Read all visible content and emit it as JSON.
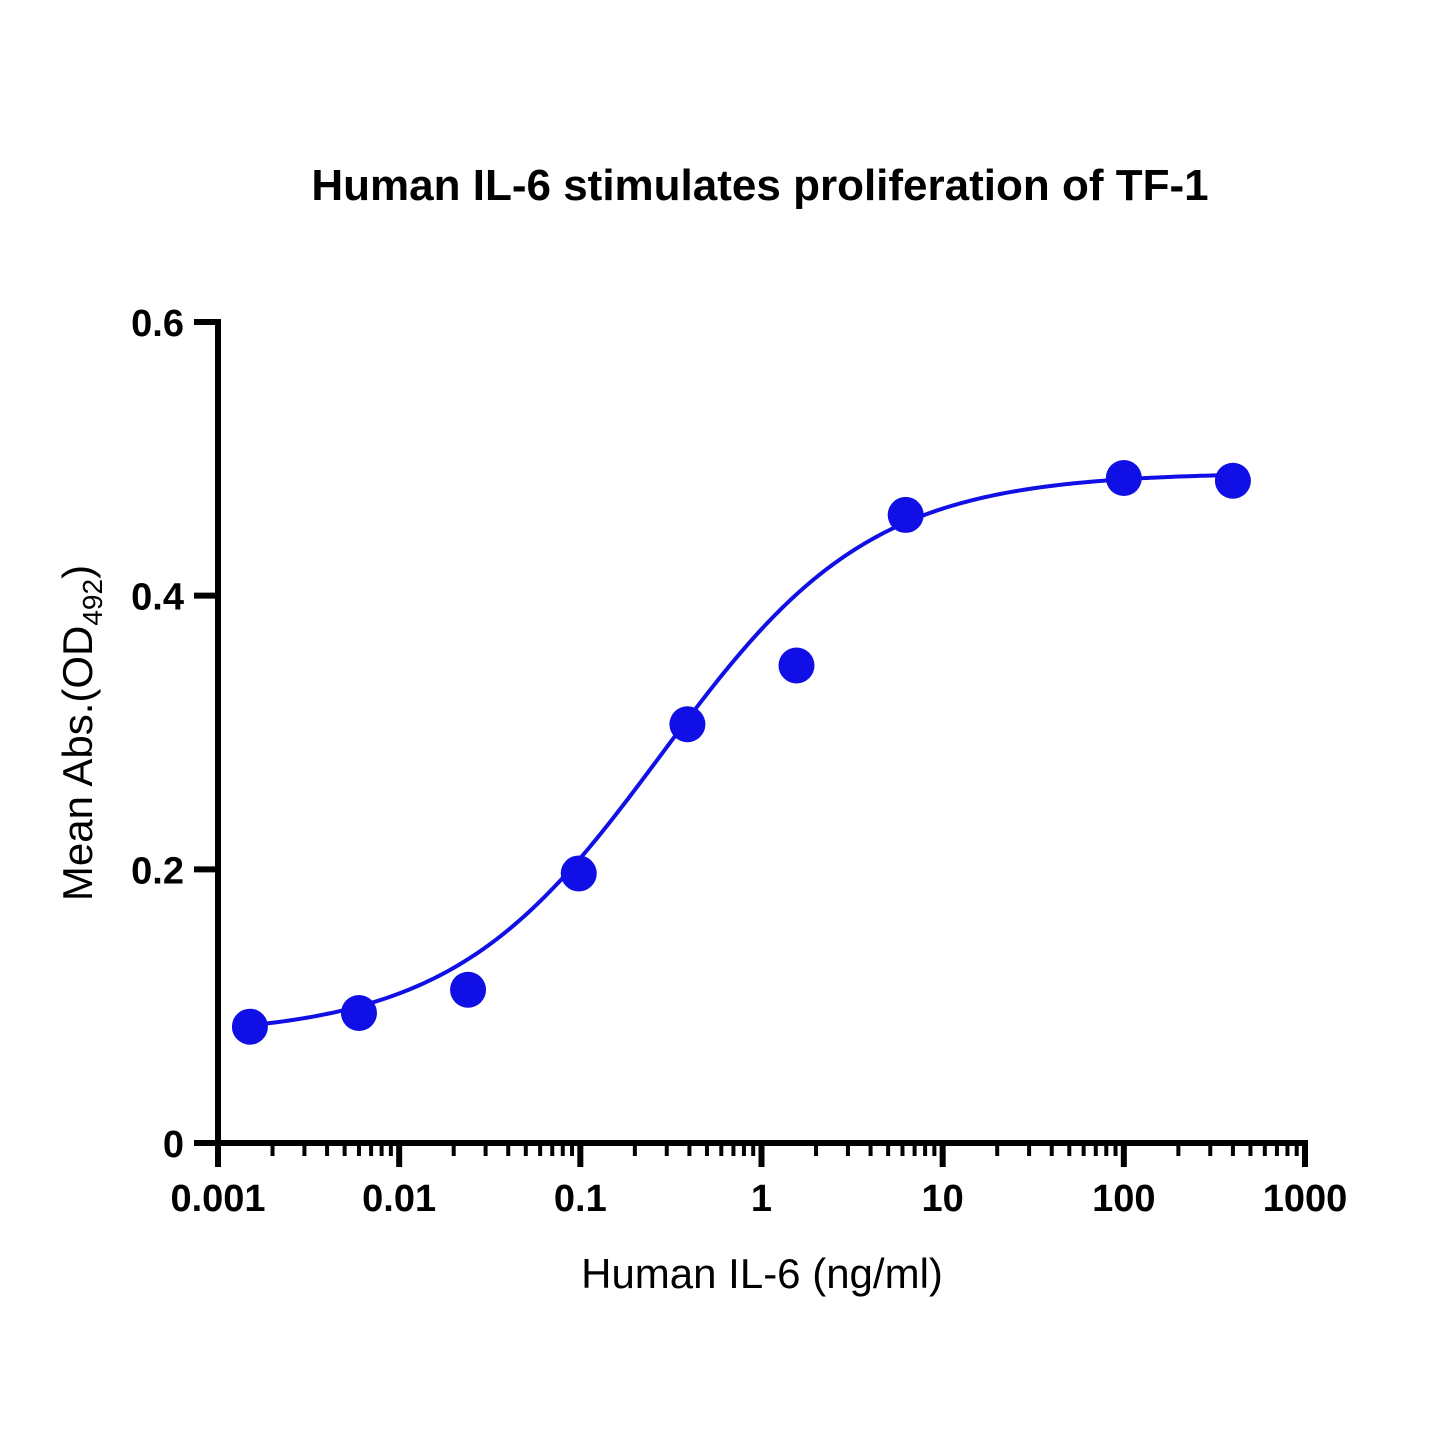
{
  "chart_data": {
    "type": "scatter",
    "title": "Human IL-6 stimulates proliferation of TF-1",
    "xlabel": "Human IL-6 (ng/ml)",
    "ylabel": {
      "main": "Mean Abs.(OD",
      "subscript": "492",
      "close": ")"
    },
    "x_scale": "log",
    "xlim": [
      0.001,
      1000
    ],
    "ylim": [
      0,
      0.6
    ],
    "x_ticks": [
      {
        "value": 0.001,
        "label": "0.001"
      },
      {
        "value": 0.01,
        "label": "0.01"
      },
      {
        "value": 0.1,
        "label": "0.1"
      },
      {
        "value": 1,
        "label": "1"
      },
      {
        "value": 10,
        "label": "10"
      },
      {
        "value": 100,
        "label": "100"
      },
      {
        "value": 1000,
        "label": "1000"
      }
    ],
    "y_ticks": [
      {
        "value": 0,
        "label": "0"
      },
      {
        "value": 0.2,
        "label": "0.2"
      },
      {
        "value": 0.4,
        "label": "0.4"
      },
      {
        "value": 0.6,
        "label": "0.6"
      }
    ],
    "grid": false,
    "legend": "none",
    "series": [
      {
        "color": "#1010E6",
        "points": [
          {
            "x": 0.0015,
            "y": 0.085
          },
          {
            "x": 0.006,
            "y": 0.095
          },
          {
            "x": 0.024,
            "y": 0.112
          },
          {
            "x": 0.098,
            "y": 0.197
          },
          {
            "x": 0.39,
            "y": 0.306
          },
          {
            "x": 1.56,
            "y": 0.349
          },
          {
            "x": 6.25,
            "y": 0.459
          },
          {
            "x": 100,
            "y": 0.486
          },
          {
            "x": 400,
            "y": 0.484
          }
        ]
      }
    ],
    "fit_curve": {
      "model": "4PL",
      "bottom": 0.078,
      "top": 0.49,
      "ec50": 0.28,
      "hill": 0.75,
      "x_range": [
        0.0015,
        400
      ],
      "color": "#1010E6"
    }
  }
}
